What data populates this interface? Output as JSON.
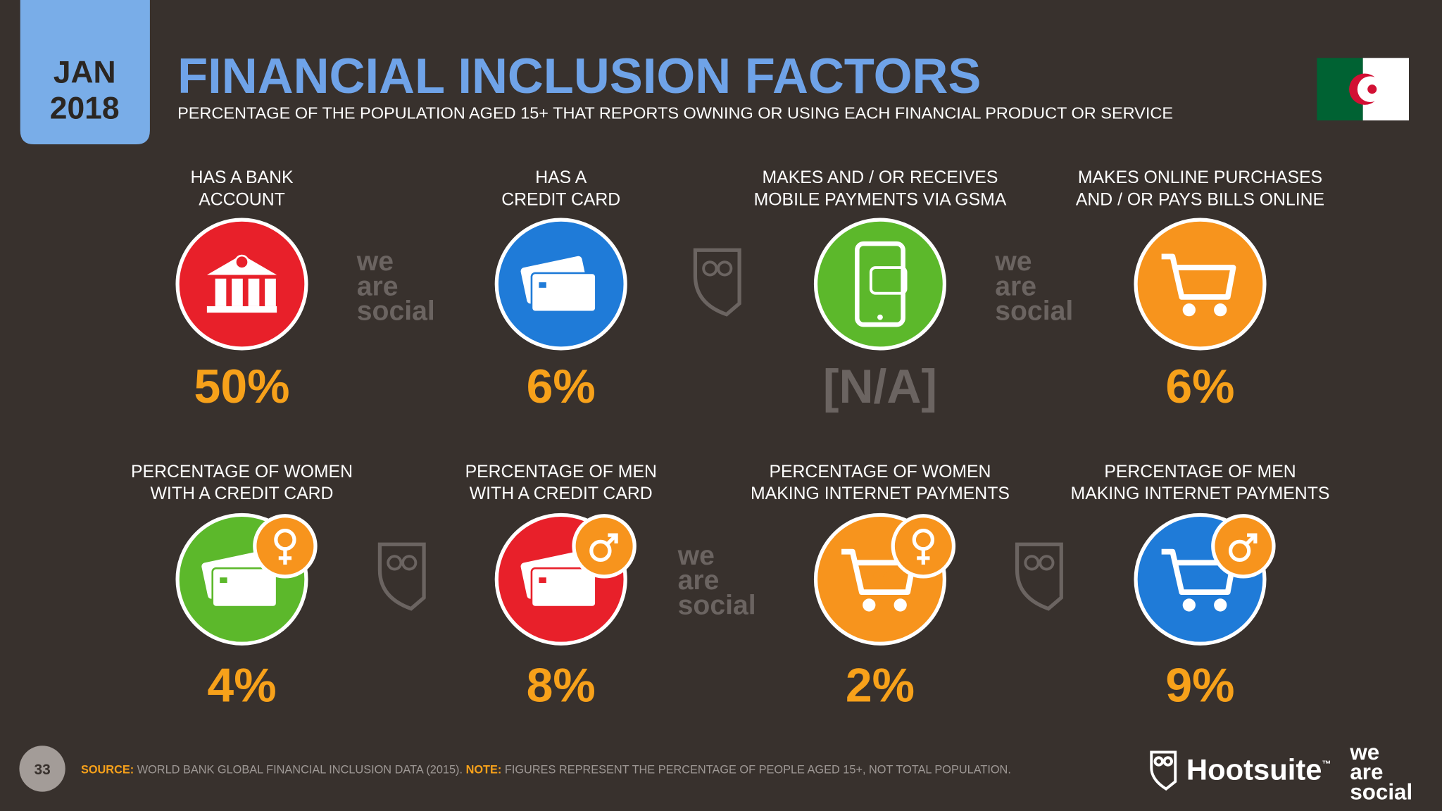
{
  "header": {
    "month": "JAN",
    "year": "2018",
    "title": "FINANCIAL INCLUSION FACTORS",
    "subtitle": "PERCENTAGE OF THE POPULATION AGED 15+ THAT REPORTS OWNING OR USING EACH FINANCIAL PRODUCT OR SERVICE"
  },
  "items": [
    {
      "label": [
        "HAS A BANK",
        "ACCOUNT"
      ],
      "value": "50%"
    },
    {
      "label": [
        "HAS A",
        "CREDIT CARD"
      ],
      "value": "6%"
    },
    {
      "label": [
        "MAKES AND / OR RECEIVES",
        "MOBILE PAYMENTS VIA GSMA"
      ],
      "value": "[N/A]"
    },
    {
      "label": [
        "MAKES ONLINE PURCHASES",
        "AND / OR PAYS BILLS ONLINE"
      ],
      "value": "6%"
    },
    {
      "label": [
        "PERCENTAGE OF WOMEN",
        "WITH A CREDIT CARD"
      ],
      "value": "4%"
    },
    {
      "label": [
        "PERCENTAGE OF MEN",
        "WITH A CREDIT CARD"
      ],
      "value": "8%"
    },
    {
      "label": [
        "PERCENTAGE OF WOMEN",
        "MAKING INTERNET PAYMENTS"
      ],
      "value": "2%"
    },
    {
      "label": [
        "PERCENTAGE OF MEN",
        "MAKING INTERNET PAYMENTS"
      ],
      "value": "9%"
    }
  ],
  "watermark": [
    "we",
    "are",
    "social"
  ],
  "footer": {
    "page": "33",
    "source_label": "SOURCE:",
    "source": "WORLD BANK GLOBAL FINANCIAL INCLUSION DATA (2015).",
    "note_label": "NOTE:",
    "note": "FIGURES REPRESENT THE PERCENTAGE OF PEOPLE AGED 15+, NOT TOTAL POPULATION.",
    "brand": "Hootsuite",
    "brand_mark": "™"
  }
}
